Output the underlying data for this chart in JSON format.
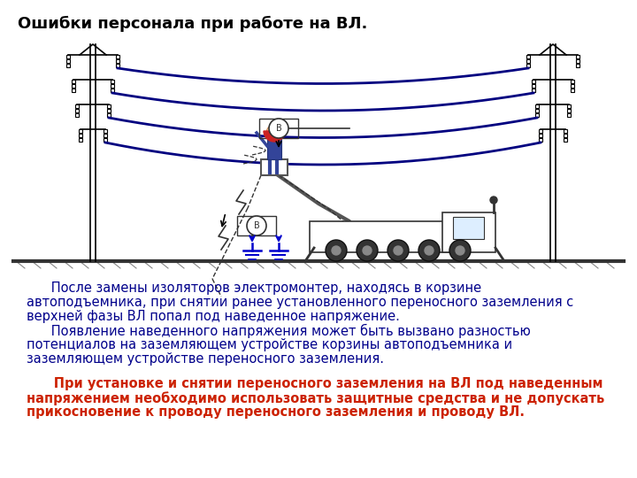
{
  "title": "Ошибки персонала при работе на ВЛ.",
  "title_fontsize": 13,
  "title_color": "#000000",
  "bg_color": "#ffffff",
  "wire_color": "#000080",
  "wire_linewidth": 2.0,
  "pole_color": "#000000",
  "text1_color": "#00008B",
  "text2_color": "#cc2200",
  "text1_line1": "      После замены изоляторов электромонтер, находясь в корзине",
  "text1_line2": "автоподъемника, при снятии ранее установленного переносного заземления с",
  "text1_line3": "верхней фазы ВЛ попал под наведенное напряжение.",
  "text1_line4": "      Появление наведенного напряжения может быть вызвано разностью",
  "text1_line5": "потенциалов на заземляющем устройстве корзины автоподъемника и",
  "text1_line6": "заземляющем устройстве переносного заземления.",
  "text2_line1": "      При установке и снятии переносного заземления на ВЛ под наведенным",
  "text2_line2": "напряжением необходимо использовать защитные средства и не допускать",
  "text2_line3": "прикосновение к проводу переносного заземления и проводу ВЛ.",
  "text_fontsize": 10.5
}
